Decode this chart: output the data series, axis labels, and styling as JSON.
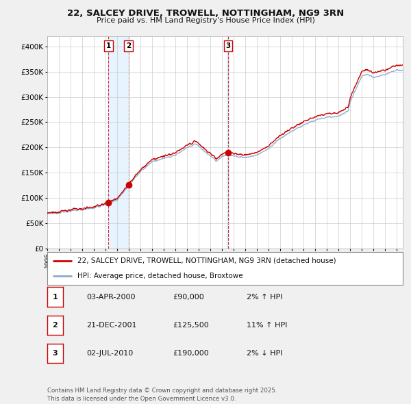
{
  "title": "22, SALCEY DRIVE, TROWELL, NOTTINGHAM, NG9 3RN",
  "subtitle": "Price paid vs. HM Land Registry's House Price Index (HPI)",
  "ylim": [
    0,
    420000
  ],
  "yticks": [
    0,
    50000,
    100000,
    150000,
    200000,
    250000,
    300000,
    350000,
    400000
  ],
  "ytick_labels": [
    "£0",
    "£50K",
    "£100K",
    "£150K",
    "£200K",
    "£250K",
    "£300K",
    "£350K",
    "£400K"
  ],
  "xlim_start": 1995.0,
  "xlim_end": 2025.5,
  "transactions": [
    {
      "label": "1",
      "date": 2000.25,
      "price": 90000
    },
    {
      "label": "2",
      "date": 2001.97,
      "price": 125500
    },
    {
      "label": "3",
      "date": 2010.5,
      "price": 190000
    }
  ],
  "transaction_table": [
    [
      "1",
      "03-APR-2000",
      "£90,000",
      "2% ↑ HPI"
    ],
    [
      "2",
      "21-DEC-2001",
      "£125,500",
      "11% ↑ HPI"
    ],
    [
      "3",
      "02-JUL-2010",
      "£190,000",
      "2% ↓ HPI"
    ]
  ],
  "line_red_color": "#cc0000",
  "line_blue_color": "#88aacc",
  "shade_color": "#ddeeff",
  "legend_entry1": "22, SALCEY DRIVE, TROWELL, NOTTINGHAM, NG9 3RN (detached house)",
  "legend_entry2": "HPI: Average price, detached house, Broxtowe",
  "footnote": "Contains HM Land Registry data © Crown copyright and database right 2025.\nThis data is licensed under the Open Government Licence v3.0.",
  "bg_color": "#f0f0f0",
  "plot_bg_color": "#ffffff",
  "grid_color": "#cccccc"
}
